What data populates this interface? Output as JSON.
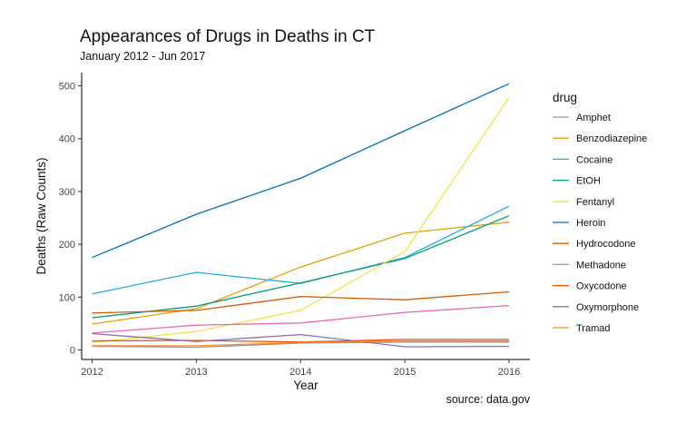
{
  "chart_data": {
    "type": "line",
    "title": "Appearances of Drugs in Deaths in CT",
    "subtitle": "January 2012 - Jun 2017",
    "xlabel": "Year",
    "ylabel": "Deaths (Raw Counts)",
    "caption": "source: data.gov",
    "x": [
      2012,
      2013,
      2014,
      2015,
      2016
    ],
    "xlim": [
      2011.9,
      2016.2
    ],
    "ylim": [
      -18,
      525
    ],
    "yticks": [
      0,
      100,
      200,
      300,
      400,
      500
    ],
    "grid": false,
    "legend": {
      "title": "drug",
      "position": "right"
    },
    "series": [
      {
        "name": "Amphet",
        "color": "#999999",
        "values": [
          7,
          5,
          13,
          15,
          15
        ]
      },
      {
        "name": "Benzodiazepine",
        "color": "#E69F00",
        "values": [
          49,
          78,
          157,
          221,
          242
        ]
      },
      {
        "name": "Cocaine",
        "color": "#1FADE3",
        "values": [
          106,
          147,
          126,
          175,
          272
        ]
      },
      {
        "name": "EtOH",
        "color": "#009E73",
        "values": [
          61,
          83,
          127,
          173,
          254
        ]
      },
      {
        "name": "Fentanyl",
        "color": "#F0E442",
        "values": [
          14,
          35,
          75,
          186,
          478
        ]
      },
      {
        "name": "Heroin",
        "color": "#0072B2",
        "values": [
          175,
          257,
          325,
          415,
          504
        ]
      },
      {
        "name": "Hydrocodone",
        "color": "#D55E00",
        "values": [
          70,
          75,
          101,
          95,
          110
        ]
      },
      {
        "name": "Methadone",
        "color": "#E86BB5",
        "values": [
          32,
          47,
          51,
          71,
          84
        ]
      },
      {
        "name": "Oxycodone",
        "color": "#F25000",
        "values": [
          17,
          18,
          15,
          20,
          20
        ]
      },
      {
        "name": "Oxymorphone",
        "color": "#8E6BB8",
        "values": [
          31,
          16,
          29,
          6,
          7
        ]
      },
      {
        "name": "Tramad",
        "color": "#EF8A33",
        "values": [
          8,
          8,
          14,
          17,
          17
        ]
      }
    ]
  }
}
